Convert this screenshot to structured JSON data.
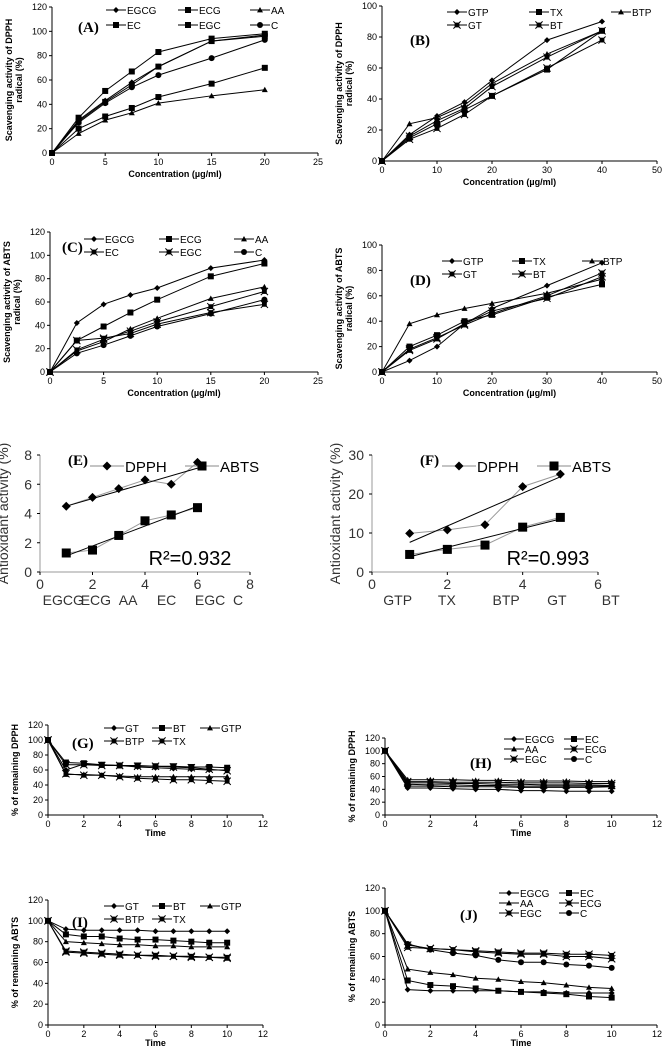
{
  "chart_data": [
    {
      "panel": "(A)",
      "type": "line",
      "xlabel": "Concentration (µg/ml)",
      "ylabel": [
        "Scavenging activity of DPPH",
        "radical (%)"
      ],
      "xlim": [
        0,
        25
      ],
      "ylim": [
        0,
        120
      ],
      "xticks": [
        0,
        5,
        10,
        15,
        20,
        25
      ],
      "yticks": [
        0,
        20,
        40,
        60,
        80,
        100,
        120
      ],
      "legend": "top-right",
      "x": [
        0,
        2.5,
        5,
        7.5,
        10,
        15,
        20
      ],
      "series": [
        {
          "name": "EGCG",
          "marker": "diamond",
          "values": [
            0,
            27,
            43,
            58,
            71,
            92,
            97
          ]
        },
        {
          "name": "ECG",
          "marker": "square",
          "values": [
            0,
            29,
            51,
            67,
            83,
            94,
            98
          ]
        },
        {
          "name": "AA",
          "marker": "triangle",
          "values": [
            0,
            16,
            27,
            33,
            41,
            47,
            52
          ]
        },
        {
          "name": "EC",
          "marker": "square",
          "values": [
            0,
            20,
            30,
            37,
            46,
            57,
            70
          ]
        },
        {
          "name": "EGC",
          "marker": "square",
          "values": [
            0,
            26,
            42,
            56,
            71,
            92,
            96
          ]
        },
        {
          "name": "C",
          "marker": "circle",
          "values": [
            0,
            25,
            41,
            54,
            64,
            78,
            93
          ]
        }
      ]
    },
    {
      "panel": "(B)",
      "type": "line",
      "xlabel": "Concentration (µg/ml)",
      "ylabel": [
        "Scavenging activity of DPPH",
        "radical (%)"
      ],
      "xlim": [
        0,
        50
      ],
      "ylim": [
        0,
        100
      ],
      "xticks": [
        0,
        10,
        20,
        30,
        40,
        50
      ],
      "yticks": [
        0,
        20,
        40,
        60,
        80,
        100
      ],
      "legend": "top-right",
      "x": [
        0,
        5,
        10,
        15,
        20,
        30,
        40
      ],
      "series": [
        {
          "name": "GTP",
          "marker": "diamond",
          "values": [
            0,
            17,
            29,
            38,
            52,
            78,
            90
          ]
        },
        {
          "name": "TX",
          "marker": "square",
          "values": [
            0,
            15,
            24,
            33,
            42,
            59,
            84
          ]
        },
        {
          "name": "BTP",
          "marker": "triangle",
          "values": [
            0,
            24,
            28,
            36,
            50,
            69,
            84
          ]
        },
        {
          "name": "GT",
          "marker": "xsquare",
          "values": [
            0,
            16,
            26,
            34,
            48,
            67,
            84
          ]
        },
        {
          "name": "BT",
          "marker": "xsquare",
          "values": [
            0,
            14,
            21,
            30,
            42,
            60,
            78
          ]
        }
      ]
    },
    {
      "panel": "(C)",
      "type": "line",
      "xlabel": "Concentration (µg/ml)",
      "ylabel": [
        "Scavenging activity of ABTS",
        "radical (%)"
      ],
      "xlim": [
        0,
        25
      ],
      "ylim": [
        0,
        120
      ],
      "xticks": [
        0,
        5,
        10,
        15,
        20,
        25
      ],
      "yticks": [
        0,
        20,
        40,
        60,
        80,
        100,
        120
      ],
      "legend": "top-right",
      "x": [
        0,
        2.5,
        5,
        7.5,
        10,
        15,
        20
      ],
      "series": [
        {
          "name": "EGCG",
          "marker": "diamond",
          "values": [
            0,
            42,
            58,
            66,
            72,
            89,
            96
          ]
        },
        {
          "name": "ECG",
          "marker": "square",
          "values": [
            0,
            27,
            39,
            51,
            62,
            82,
            93
          ]
        },
        {
          "name": "AA",
          "marker": "triangle",
          "values": [
            0,
            18,
            26,
            37,
            46,
            63,
            73
          ]
        },
        {
          "name": "EC",
          "marker": "xsquare",
          "values": [
            0,
            19,
            28,
            35,
            43,
            56,
            69
          ]
        },
        {
          "name": "EGC",
          "marker": "xsquare",
          "values": [
            0,
            27,
            29,
            33,
            41,
            51,
            58
          ]
        },
        {
          "name": "C",
          "marker": "circle",
          "values": [
            0,
            16,
            23,
            31,
            39,
            50,
            62
          ]
        }
      ]
    },
    {
      "panel": "(D)",
      "type": "line",
      "xlabel": "Concentration (µg/ml)",
      "ylabel": [
        "Scavenging activity of ABTS",
        "radical (%)"
      ],
      "xlim": [
        0,
        50
      ],
      "ylim": [
        0,
        100
      ],
      "xticks": [
        0,
        10,
        20,
        30,
        40,
        50
      ],
      "yticks": [
        0,
        20,
        40,
        60,
        80,
        100
      ],
      "legend": "top-right",
      "x": [
        0,
        5,
        10,
        15,
        20,
        30,
        40
      ],
      "series": [
        {
          "name": "GTP",
          "marker": "diamond",
          "values": [
            0,
            9,
            20,
            38,
            50,
            68,
            86
          ]
        },
        {
          "name": "TX",
          "marker": "square",
          "values": [
            0,
            20,
            29,
            40,
            45,
            59,
            69
          ]
        },
        {
          "name": "BTP",
          "marker": "triangle",
          "values": [
            0,
            38,
            45,
            50,
            54,
            62,
            73
          ]
        },
        {
          "name": "GT",
          "marker": "xsquare",
          "values": [
            0,
            18,
            27,
            37,
            46,
            60,
            78
          ]
        },
        {
          "name": "BT",
          "marker": "xsquare",
          "values": [
            0,
            17,
            26,
            38,
            48,
            58,
            75
          ]
        }
      ]
    },
    {
      "panel": "(E)",
      "type": "line",
      "xlabel": "",
      "ylabel": [
        "Antioxidant activity (%)"
      ],
      "xlim": [
        0,
        8
      ],
      "ylim": [
        0,
        8
      ],
      "xticks": [
        0,
        2,
        4,
        6,
        8
      ],
      "yticks": [
        0,
        2,
        4,
        6,
        8
      ],
      "legend": "top",
      "categories": [
        "EGCG",
        "ECG",
        "AA",
        "EC",
        "EGC",
        "C"
      ],
      "x": [
        1,
        2,
        3,
        4,
        5,
        6
      ],
      "series": [
        {
          "name": "DPPH",
          "marker": "diamond",
          "values": [
            4.5,
            5.1,
            5.7,
            6.3,
            6.0,
            7.5
          ],
          "trend": [
            4.5,
            7.1
          ]
        },
        {
          "name": "ABTS",
          "marker": "square",
          "values": [
            1.3,
            1.5,
            2.5,
            3.5,
            3.9,
            4.4
          ],
          "trend": [
            1.1,
            4.5
          ]
        }
      ],
      "annotation": "R²=0.932"
    },
    {
      "panel": "(F)",
      "type": "line",
      "xlabel": "",
      "ylabel": [
        "Antioxidant activity (%)"
      ],
      "xlim": [
        0,
        6
      ],
      "ylim": [
        0,
        30
      ],
      "xticks": [
        0,
        2,
        4,
        6
      ],
      "yticks": [
        0,
        10,
        20,
        30
      ],
      "legend": "top",
      "categories": [
        "GTP",
        "TX",
        "BTP",
        "GT",
        "BT"
      ],
      "x": [
        1,
        2,
        3,
        4,
        5
      ],
      "series": [
        {
          "name": "DPPH",
          "marker": "diamond",
          "values": [
            9.9,
            10.8,
            12.1,
            21.9,
            25.1
          ],
          "trend": [
            7.6,
            24.4
          ]
        },
        {
          "name": "ABTS",
          "marker": "square",
          "values": [
            4.5,
            5.8,
            6.9,
            11.5,
            14.0
          ],
          "trend": [
            3.9,
            13.6
          ]
        }
      ],
      "annotation": "R²=0.993"
    },
    {
      "panel": "(G)",
      "type": "line",
      "xlabel": "Time",
      "ylabel": [
        "% of remaining DPPH"
      ],
      "xlim": [
        0,
        12
      ],
      "ylim": [
        0,
        120
      ],
      "xticks": [
        0,
        2,
        4,
        6,
        8,
        10,
        12
      ],
      "yticks": [
        0,
        20,
        40,
        60,
        80,
        100,
        120
      ],
      "legend": "top-right",
      "x": [
        0,
        1,
        2,
        3,
        4,
        5,
        6,
        7,
        8,
        9,
        10
      ],
      "series": [
        {
          "name": "GT",
          "marker": "diamond",
          "values": [
            100,
            60,
            68,
            67,
            66,
            64,
            63,
            62,
            61,
            60,
            60
          ]
        },
        {
          "name": "BT",
          "marker": "square",
          "values": [
            100,
            70,
            69,
            67,
            66,
            66,
            65,
            65,
            64,
            64,
            63
          ]
        },
        {
          "name": "GTP",
          "marker": "triangle",
          "values": [
            100,
            54,
            54,
            53,
            52,
            51,
            51,
            51,
            51,
            51,
            51
          ]
        },
        {
          "name": "BTP",
          "marker": "xsquare",
          "values": [
            100,
            55,
            53,
            53,
            51,
            49,
            48,
            47,
            47,
            46,
            45
          ]
        },
        {
          "name": "TX",
          "marker": "xsquare",
          "values": [
            100,
            67,
            67,
            66,
            66,
            65,
            65,
            64,
            63,
            61,
            59
          ]
        }
      ]
    },
    {
      "panel": "(H)",
      "type": "line",
      "xlabel": "Time",
      "ylabel": [
        "% of  remaining DPPH"
      ],
      "xlim": [
        0,
        12
      ],
      "ylim": [
        0,
        120
      ],
      "xticks": [
        0,
        2,
        4,
        6,
        8,
        10,
        12
      ],
      "yticks": [
        0,
        20,
        40,
        60,
        80,
        100,
        120
      ],
      "legend": "top-right",
      "x": [
        0,
        1,
        2,
        3,
        4,
        5,
        6,
        7,
        8,
        9,
        10
      ],
      "series": [
        {
          "name": "EGCG",
          "marker": "diamond",
          "values": [
            100,
            42,
            42,
            41,
            40,
            40,
            38,
            38,
            37,
            37,
            37
          ]
        },
        {
          "name": "EC",
          "marker": "square",
          "values": [
            100,
            48,
            47,
            47,
            46,
            46,
            45,
            45,
            45,
            45,
            45
          ]
        },
        {
          "name": "AA",
          "marker": "triangle",
          "values": [
            100,
            55,
            55,
            55,
            54,
            54,
            53,
            53,
            53,
            52,
            52
          ]
        },
        {
          "name": "ECG",
          "marker": "xsquare",
          "values": [
            100,
            50,
            50,
            49,
            49,
            48,
            48,
            47,
            47,
            47,
            46
          ]
        },
        {
          "name": "EGC",
          "marker": "xsquare",
          "values": [
            100,
            52,
            52,
            51,
            51,
            51,
            50,
            50,
            50,
            49,
            49
          ]
        },
        {
          "name": "C",
          "marker": "circle",
          "values": [
            100,
            45,
            45,
            44,
            44,
            44,
            43,
            43,
            43,
            43,
            44
          ]
        }
      ]
    },
    {
      "panel": "(I)",
      "type": "line",
      "xlabel": "Time",
      "ylabel": [
        "% of remaining ABTS"
      ],
      "xlim": [
        0,
        12
      ],
      "ylim": [
        0,
        120
      ],
      "xticks": [
        0,
        2,
        4,
        6,
        8,
        10,
        12
      ],
      "yticks": [
        0,
        20,
        40,
        60,
        80,
        100,
        120
      ],
      "legend": "top-right",
      "x": [
        0,
        1,
        2,
        3,
        4,
        5,
        6,
        7,
        8,
        9,
        10
      ],
      "series": [
        {
          "name": "GT",
          "marker": "diamond",
          "values": [
            100,
            92,
            91,
            91,
            91,
            91,
            90,
            90,
            90,
            90,
            90
          ]
        },
        {
          "name": "BT",
          "marker": "square",
          "values": [
            100,
            87,
            85,
            85,
            83,
            82,
            82,
            81,
            80,
            79,
            79
          ]
        },
        {
          "name": "GTP",
          "marker": "triangle",
          "values": [
            100,
            80,
            79,
            78,
            77,
            77,
            76,
            76,
            75,
            75,
            75
          ]
        },
        {
          "name": "BTP",
          "marker": "xsquare",
          "values": [
            100,
            71,
            70,
            69,
            68,
            67,
            67,
            66,
            66,
            65,
            65
          ]
        },
        {
          "name": "TX",
          "marker": "xsquare",
          "values": [
            100,
            70,
            69,
            68,
            67,
            67,
            66,
            66,
            65,
            65,
            64
          ]
        }
      ]
    },
    {
      "panel": "(J)",
      "type": "line",
      "xlabel": "Time",
      "ylabel": [
        "% of remaining ABTS"
      ],
      "xlim": [
        0,
        12
      ],
      "ylim": [
        0,
        120
      ],
      "xticks": [
        0,
        2,
        4,
        6,
        8,
        10,
        12
      ],
      "yticks": [
        0,
        20,
        40,
        60,
        80,
        100,
        120
      ],
      "legend": "top-right",
      "x": [
        0,
        1,
        2,
        3,
        4,
        5,
        6,
        7,
        8,
        9,
        10
      ],
      "series": [
        {
          "name": "EGCG",
          "marker": "diamond",
          "values": [
            100,
            31,
            30,
            30,
            30,
            30,
            29,
            29,
            28,
            28,
            28
          ]
        },
        {
          "name": "EC",
          "marker": "square",
          "values": [
            100,
            39,
            35,
            34,
            32,
            30,
            29,
            28,
            27,
            25,
            24
          ]
        },
        {
          "name": "AA",
          "marker": "triangle",
          "values": [
            100,
            49,
            46,
            44,
            41,
            40,
            38,
            37,
            35,
            33,
            32
          ]
        },
        {
          "name": "ECG",
          "marker": "xsquare",
          "values": [
            100,
            70,
            67,
            66,
            65,
            64,
            63,
            63,
            62,
            62,
            61
          ]
        },
        {
          "name": "EGC",
          "marker": "xsquare",
          "values": [
            100,
            68,
            67,
            66,
            64,
            63,
            62,
            62,
            60,
            60,
            58
          ]
        },
        {
          "name": "C",
          "marker": "circle",
          "values": [
            100,
            71,
            66,
            63,
            61,
            57,
            55,
            55,
            53,
            52,
            50
          ]
        }
      ]
    }
  ]
}
